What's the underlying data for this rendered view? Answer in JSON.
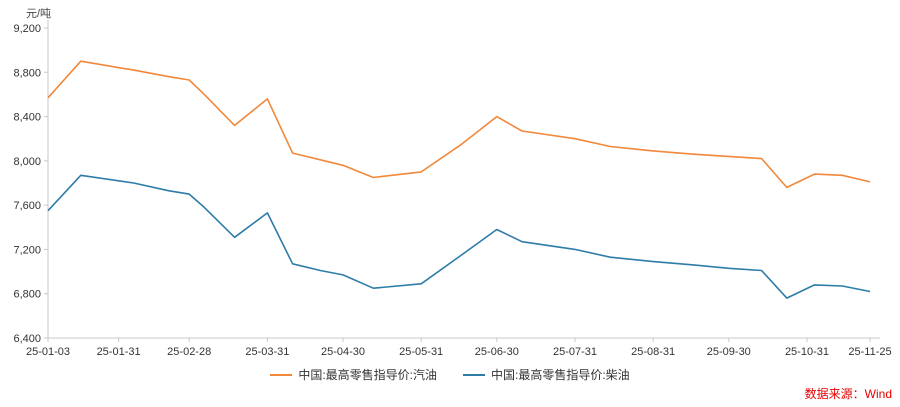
{
  "chart_data": {
    "type": "line",
    "title": "",
    "xlabel": "",
    "ylabel": "元/吨",
    "ylim": [
      6400,
      9200
    ],
    "ytick_step": 400,
    "grid": false,
    "legend_position": "bottom",
    "x_ticks": [
      "25-01-03",
      "25-01-31",
      "25-02-28",
      "25-03-31",
      "25-04-30",
      "25-05-31",
      "25-06-30",
      "25-07-31",
      "25-08-31",
      "25-09-30",
      "25-10-31",
      "25-11-25"
    ],
    "x": [
      "25-01-03",
      "25-01-16",
      "25-02-06",
      "25-02-20",
      "25-02-28",
      "25-03-06",
      "25-03-18",
      "25-03-31",
      "25-04-10",
      "25-04-21",
      "25-04-30",
      "25-05-12",
      "25-05-31",
      "25-06-16",
      "25-06-30",
      "25-07-10",
      "25-07-31",
      "25-08-14",
      "25-08-31",
      "25-09-16",
      "25-09-30",
      "25-10-13",
      "25-10-23",
      "25-11-03",
      "25-11-14",
      "25-11-25"
    ],
    "series": [
      {
        "id": "gasoline",
        "name": "中国:最高零售指导价:汽油",
        "color": "#f1883b",
        "values": [
          8570,
          8900,
          8820,
          8760,
          8730,
          8600,
          8320,
          8560,
          8070,
          8010,
          7960,
          7850,
          7900,
          8150,
          8400,
          8270,
          8200,
          8130,
          8090,
          8060,
          8040,
          8020,
          7760,
          7880,
          7870,
          7810
        ]
      },
      {
        "id": "diesel",
        "name": "中国:最高零售指导价:柴油",
        "color": "#2e7ca8",
        "values": [
          7550,
          7870,
          7800,
          7730,
          7700,
          7580,
          7310,
          7530,
          7070,
          7010,
          6970,
          6850,
          6890,
          7150,
          7380,
          7270,
          7200,
          7130,
          7090,
          7060,
          7030,
          7010,
          6760,
          6880,
          6870,
          6820
        ]
      }
    ]
  },
  "source": "数据来源：Wind"
}
